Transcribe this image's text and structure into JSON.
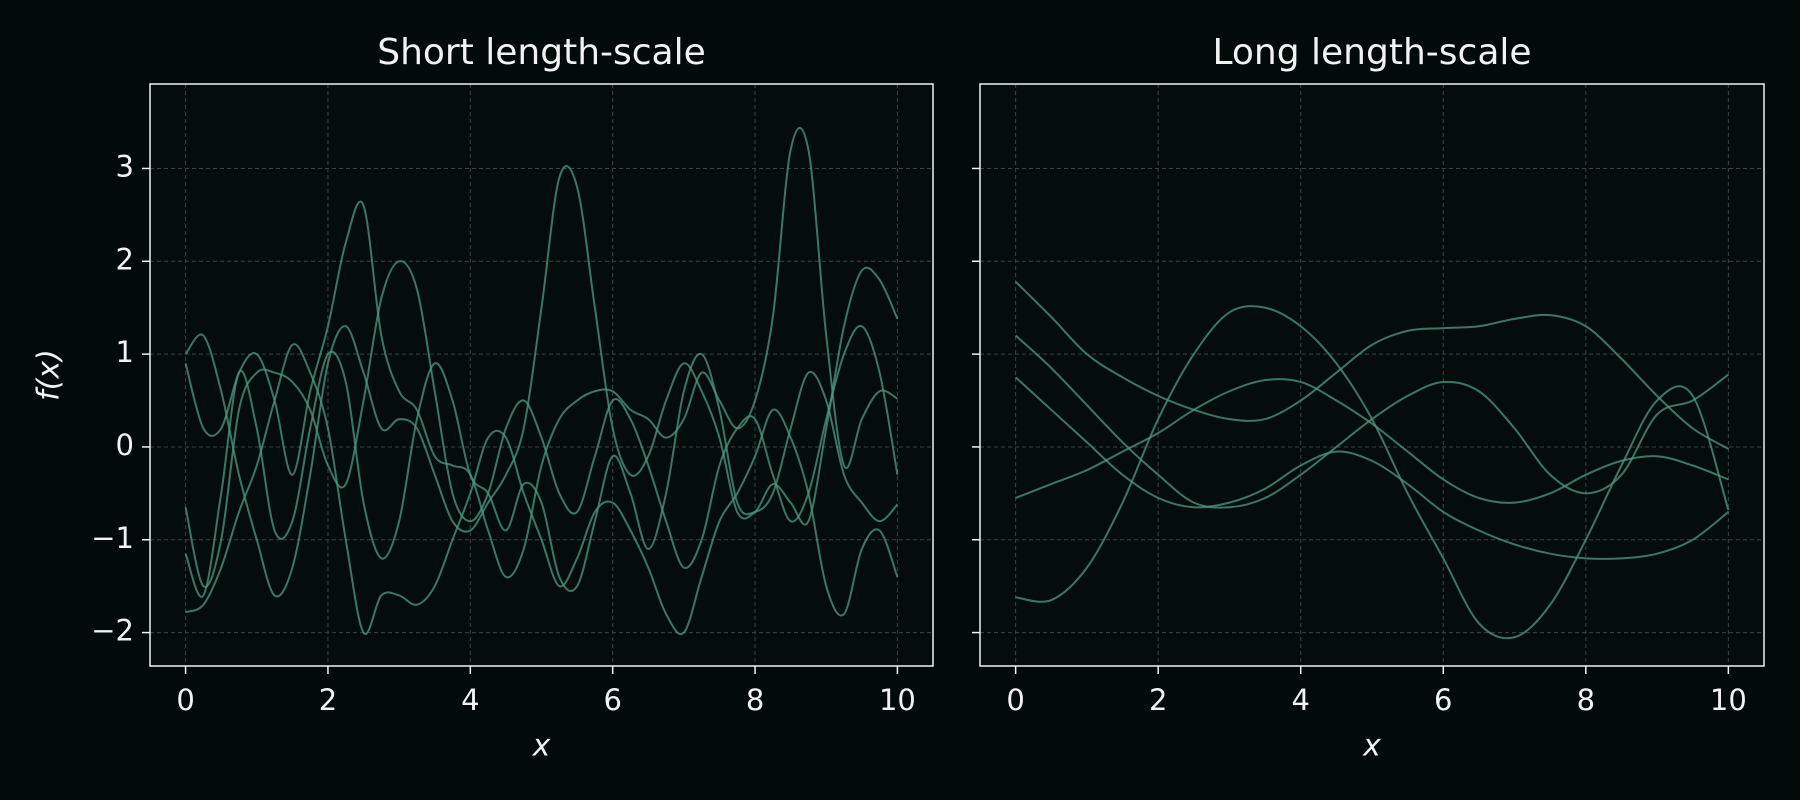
{
  "chart_data": [
    {
      "type": "line",
      "title": "Short length-scale",
      "xlabel": "x",
      "ylabel": "f(x)",
      "xlim": [
        -0.5,
        10.5
      ],
      "ylim": [
        -2.36,
        3.91
      ],
      "xticks": [
        0,
        2,
        4,
        6,
        8,
        10
      ],
      "yticks": [
        {
          "value": -2,
          "label": "−2"
        },
        {
          "value": -1,
          "label": "−1"
        },
        0,
        1,
        2,
        3
      ],
      "ytick_labels": true,
      "grid": true,
      "x": [
        0,
        0.25,
        0.5,
        0.75,
        1,
        1.25,
        1.5,
        1.75,
        2,
        2.25,
        2.5,
        2.75,
        3,
        3.25,
        3.5,
        3.75,
        4,
        4.25,
        4.5,
        4.75,
        5,
        5.25,
        5.5,
        5.75,
        6,
        6.25,
        6.5,
        6.75,
        7,
        7.25,
        7.5,
        7.75,
        8,
        8.25,
        8.5,
        8.75,
        9,
        9.25,
        9.5,
        9.75,
        10
      ],
      "series": [
        {
          "color": "#4e9a85",
          "values": [
            1.0,
            1.2,
            0.6,
            -0.3,
            -1.0,
            -1.6,
            -1.3,
            -0.3,
            0.9,
            1.3,
            0.8,
            0.2,
            0.3,
            0.2,
            -0.3,
            -0.8,
            -0.9,
            -0.6,
            -0.3,
            0.2,
            1.5,
            2.9,
            2.8,
            1.5,
            0.2,
            -0.3,
            -0.1,
            0.5,
            0.9,
            0.6,
            0.1,
            -0.7,
            -0.7,
            -0.4,
            -0.6,
            -0.8,
            0.2,
            1.3,
            1.9,
            1.8,
            1.38
          ]
        },
        {
          "color": "#4e9a85",
          "values": [
            0.9,
            0.2,
            0.2,
            0.8,
            1.0,
            0.5,
            -0.3,
            0.6,
            1.3,
            2.2,
            2.6,
            1.2,
            0.6,
            0.4,
            -0.1,
            -0.2,
            -0.3,
            -0.9,
            -1.4,
            -1.1,
            -0.2,
            0.3,
            0.5,
            0.6,
            0.6,
            0.4,
            0.3,
            0.1,
            0.3,
            0.8,
            0.5,
            0.2,
            0.5,
            1.4,
            3.2,
            3.2,
            1.2,
            -0.2,
            0.3,
            0.6,
            0.52
          ]
        },
        {
          "color": "#4e9a85",
          "values": [
            -0.65,
            -1.5,
            -1.0,
            0.4,
            0.8,
            0.8,
            0.7,
            0.4,
            -0.2,
            -0.4,
            0.5,
            1.6,
            2.0,
            1.7,
            0.6,
            -0.5,
            -0.8,
            -0.5,
            0.2,
            0.5,
            0.1,
            -0.5,
            -0.7,
            -0.1,
            0.5,
            0.3,
            -0.2,
            -0.8,
            -1.3,
            -1.0,
            -0.2,
            0.2,
            0.3,
            -0.3,
            -0.8,
            -0.5,
            0.3,
            1.0,
            1.3,
            0.8,
            -0.3
          ]
        },
        {
          "color": "#4e9a85",
          "values": [
            -1.15,
            -1.6,
            -0.5,
            0.8,
            0.2,
            -0.9,
            -0.8,
            0.2,
            1.0,
            0.7,
            -0.6,
            -1.2,
            -0.8,
            0.3,
            0.9,
            0.5,
            -0.3,
            -0.5,
            -0.9,
            -0.4,
            -0.6,
            -1.4,
            -1.5,
            -0.8,
            -0.1,
            -0.5,
            -1.1,
            -0.5,
            0.6,
            1.0,
            0.4,
            -0.6,
            -0.7,
            -0.5,
            0.2,
            0.8,
            0.5,
            -0.3,
            -0.6,
            -0.8,
            -0.62
          ]
        },
        {
          "color": "#4e9a85",
          "values": [
            -1.78,
            -1.7,
            -1.3,
            -0.7,
            -0.2,
            0.5,
            1.1,
            0.8,
            0.2,
            -1.0,
            -2.0,
            -1.6,
            -1.6,
            -1.7,
            -1.5,
            -1.0,
            -0.5,
            0.1,
            0.1,
            -0.5,
            -1.0,
            -1.5,
            -1.2,
            -0.7,
            -0.6,
            -0.9,
            -1.3,
            -1.8,
            -2.0,
            -1.4,
            -0.8,
            -0.5,
            -0.1,
            0.4,
            0.1,
            -0.5,
            -1.5,
            -1.8,
            -1.1,
            -0.9,
            -1.4
          ]
        }
      ]
    },
    {
      "type": "line",
      "title": "Long length-scale",
      "xlabel": "x",
      "xlim": [
        -0.5,
        10.5
      ],
      "ylim": [
        -2.36,
        3.91
      ],
      "xticks": [
        0,
        2,
        4,
        6,
        8,
        10
      ],
      "yticks": [
        -2,
        -1,
        0,
        1,
        2,
        3
      ],
      "ytick_labels": false,
      "grid": true,
      "x": [
        0,
        0.5,
        1,
        1.5,
        2,
        2.5,
        3,
        3.5,
        4,
        4.5,
        5,
        5.5,
        6,
        6.5,
        7,
        7.5,
        8,
        8.5,
        9,
        9.5,
        10
      ],
      "series": [
        {
          "color": "#4e9a85",
          "values": [
            1.78,
            1.4,
            1.0,
            0.75,
            0.55,
            0.4,
            0.3,
            0.3,
            0.5,
            0.8,
            1.1,
            1.25,
            1.28,
            1.3,
            1.38,
            1.42,
            1.3,
            0.95,
            0.55,
            0.2,
            -0.02
          ]
        },
        {
          "color": "#4e9a85",
          "values": [
            1.2,
            0.85,
            0.45,
            0.05,
            -0.3,
            -0.6,
            -0.65,
            -0.55,
            -0.3,
            0.0,
            0.3,
            0.55,
            0.7,
            0.6,
            0.2,
            -0.3,
            -0.5,
            -0.3,
            0.35,
            0.5,
            0.78
          ]
        },
        {
          "color": "#4e9a85",
          "values": [
            0.75,
            0.4,
            0.05,
            -0.3,
            -0.55,
            -0.65,
            -0.6,
            -0.45,
            -0.2,
            -0.05,
            -0.15,
            -0.4,
            -0.7,
            -0.9,
            -1.05,
            -1.15,
            -1.2,
            -1.2,
            -1.15,
            -1.0,
            -0.7
          ]
        },
        {
          "color": "#4e9a85",
          "values": [
            -0.55,
            -0.4,
            -0.25,
            -0.05,
            0.15,
            0.4,
            0.6,
            0.72,
            0.7,
            0.5,
            0.25,
            -0.05,
            -0.35,
            -0.55,
            -0.6,
            -0.5,
            -0.3,
            -0.15,
            -0.1,
            -0.2,
            -0.35
          ]
        },
        {
          "color": "#4e9a85",
          "values": [
            -1.62,
            -1.65,
            -1.3,
            -0.6,
            0.3,
            1.0,
            1.45,
            1.5,
            1.3,
            0.9,
            0.3,
            -0.5,
            -1.2,
            -1.9,
            -2.05,
            -1.7,
            -1.0,
            -0.2,
            0.5,
            0.55,
            -0.68
          ]
        }
      ]
    }
  ]
}
